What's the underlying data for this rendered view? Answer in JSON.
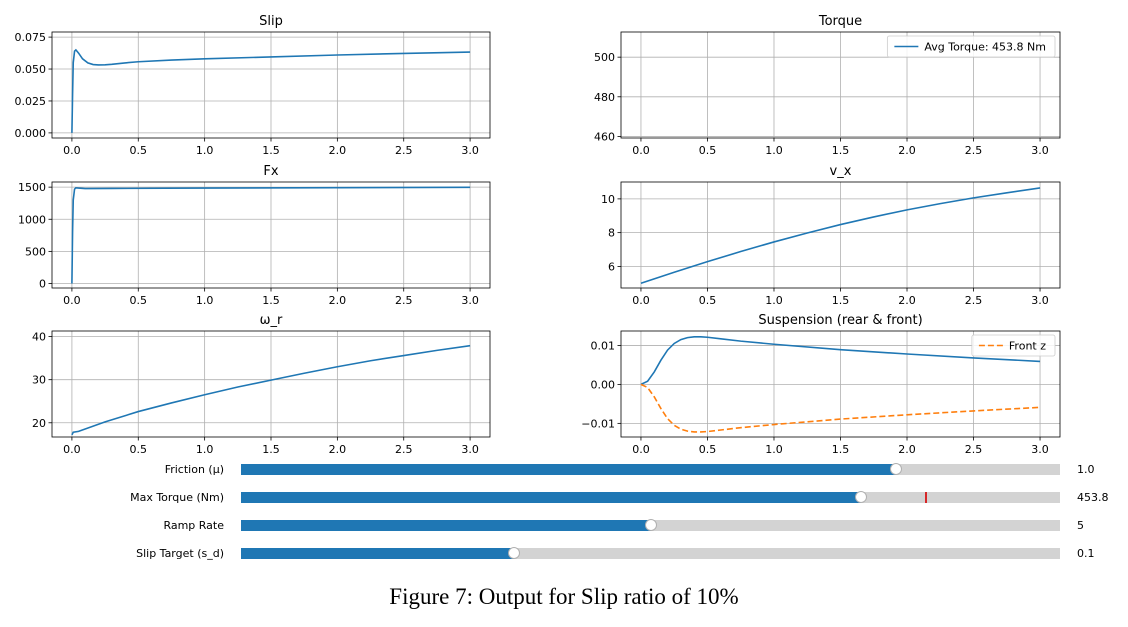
{
  "chart_data": [
    {
      "type": "line",
      "title": "Slip",
      "xlim": [
        -0.15,
        3.15
      ],
      "ylim": [
        -0.004,
        0.079
      ],
      "xticks": [
        0.0,
        0.5,
        1.0,
        1.5,
        2.0,
        2.5,
        3.0
      ],
      "xtick_labels": [
        "0.0",
        "0.5",
        "1.0",
        "1.5",
        "2.0",
        "2.5",
        "3.0"
      ],
      "yticks": [
        0.0,
        0.025,
        0.05,
        0.075
      ],
      "ytick_labels": [
        "0.000",
        "0.025",
        "0.050",
        "0.075"
      ],
      "grid": true,
      "series": [
        {
          "color": "#1f77b4",
          "x": [
            0.0,
            0.005,
            0.01,
            0.02,
            0.03,
            0.05,
            0.08,
            0.12,
            0.16,
            0.2,
            0.25,
            0.3,
            0.4,
            0.5,
            0.75,
            1.0,
            1.5,
            2.0,
            2.5,
            3.0
          ],
          "y": [
            0.0,
            0.03,
            0.055,
            0.064,
            0.065,
            0.0625,
            0.058,
            0.0548,
            0.0535,
            0.0532,
            0.0533,
            0.0537,
            0.0548,
            0.0557,
            0.057,
            0.058,
            0.0595,
            0.061,
            0.0622,
            0.0633
          ]
        }
      ]
    },
    {
      "type": "line",
      "title": "Torque",
      "xlim": [
        -0.15,
        3.15
      ],
      "ylim": [
        459.2,
        512.7
      ],
      "xticks": [
        0.0,
        0.5,
        1.0,
        1.5,
        2.0,
        2.5,
        3.0
      ],
      "xtick_labels": [
        "0.0",
        "0.5",
        "1.0",
        "1.5",
        "2.0",
        "2.5",
        "3.0"
      ],
      "yticks": [
        460,
        480,
        500
      ],
      "ytick_labels": [
        "460",
        "480",
        "500"
      ],
      "grid": true,
      "legend": "top-right",
      "series": [
        {
          "name": "Avg Torque: 453.8 Nm",
          "color": "#1f77b4",
          "x": [
            0.0,
            3.0
          ],
          "y": [
            453.8,
            453.8
          ]
        }
      ]
    },
    {
      "type": "line",
      "title": "Fx",
      "xlim": [
        -0.15,
        3.15
      ],
      "ylim": [
        -70,
        1580
      ],
      "xticks": [
        0.0,
        0.5,
        1.0,
        1.5,
        2.0,
        2.5,
        3.0
      ],
      "xtick_labels": [
        "0.0",
        "0.5",
        "1.0",
        "1.5",
        "2.0",
        "2.5",
        "3.0"
      ],
      "yticks": [
        0,
        500,
        1000,
        1500
      ],
      "ytick_labels": [
        "0",
        "500",
        "1000",
        "1500"
      ],
      "grid": true,
      "series": [
        {
          "color": "#1f77b4",
          "x": [
            0.0,
            0.005,
            0.01,
            0.02,
            0.03,
            0.05,
            0.1,
            0.3,
            1.0,
            2.0,
            3.0
          ],
          "y": [
            0,
            800,
            1300,
            1470,
            1490,
            1485,
            1478,
            1480,
            1485,
            1492,
            1498
          ]
        }
      ]
    },
    {
      "type": "line",
      "title": "v_x",
      "xlim": [
        -0.15,
        3.15
      ],
      "ylim": [
        4.72,
        11.0
      ],
      "xticks": [
        0.0,
        0.5,
        1.0,
        1.5,
        2.0,
        2.5,
        3.0
      ],
      "xtick_labels": [
        "0.0",
        "0.5",
        "1.0",
        "1.5",
        "2.0",
        "2.5",
        "3.0"
      ],
      "yticks": [
        6,
        8,
        10
      ],
      "ytick_labels": [
        "6",
        "8",
        "10"
      ],
      "grid": true,
      "series": [
        {
          "color": "#1f77b4",
          "x": [
            0.0,
            0.25,
            0.5,
            0.75,
            1.0,
            1.25,
            1.5,
            1.75,
            2.0,
            2.25,
            2.5,
            2.75,
            3.0
          ],
          "y": [
            5.0,
            5.65,
            6.28,
            6.88,
            7.45,
            7.98,
            8.48,
            8.93,
            9.35,
            9.72,
            10.06,
            10.36,
            10.65
          ]
        }
      ]
    },
    {
      "type": "line",
      "title": "ω_r",
      "xlim": [
        -0.15,
        3.15
      ],
      "ylim": [
        16.7,
        41.3
      ],
      "xticks": [
        0.0,
        0.5,
        1.0,
        1.5,
        2.0,
        2.5,
        3.0
      ],
      "xtick_labels": [
        "0.0",
        "0.5",
        "1.0",
        "1.5",
        "2.0",
        "2.5",
        "3.0"
      ],
      "yticks": [
        20,
        30,
        40
      ],
      "ytick_labels": [
        "20",
        "30",
        "40"
      ],
      "grid": true,
      "series": [
        {
          "color": "#1f77b4",
          "x": [
            0.0,
            0.01,
            0.05,
            0.25,
            0.5,
            0.75,
            1.0,
            1.25,
            1.5,
            1.75,
            2.0,
            2.25,
            2.5,
            2.75,
            3.0
          ],
          "y": [
            17.2,
            17.8,
            18.0,
            20.2,
            22.6,
            24.6,
            26.5,
            28.3,
            29.9,
            31.5,
            33.0,
            34.4,
            35.6,
            36.8,
            37.9
          ]
        }
      ]
    },
    {
      "type": "line",
      "title": "Suspension (rear & front)",
      "xlim": [
        -0.15,
        3.15
      ],
      "ylim": [
        -0.0135,
        0.0137
      ],
      "xticks": [
        0.0,
        0.5,
        1.0,
        1.5,
        2.0,
        2.5,
        3.0
      ],
      "xtick_labels": [
        "0.0",
        "0.5",
        "1.0",
        "1.5",
        "2.0",
        "2.5",
        "3.0"
      ],
      "yticks": [
        -0.01,
        0.0,
        0.01
      ],
      "ytick_labels": [
        "−0.01",
        "0.00",
        "0.01"
      ],
      "grid": true,
      "legend": "top-right",
      "series": [
        {
          "color": "#1f77b4",
          "dash": "solid",
          "x": [
            0.0,
            0.05,
            0.1,
            0.15,
            0.2,
            0.25,
            0.3,
            0.35,
            0.4,
            0.45,
            0.5,
            0.6,
            0.75,
            1.0,
            1.5,
            2.0,
            2.5,
            3.0
          ],
          "y": [
            0.0,
            0.0008,
            0.0032,
            0.0062,
            0.0088,
            0.0105,
            0.0115,
            0.012,
            0.0122,
            0.0122,
            0.0121,
            0.0117,
            0.0111,
            0.0103,
            0.0089,
            0.0078,
            0.0068,
            0.0059
          ]
        },
        {
          "name": "Front z",
          "color": "#ff7f0e",
          "dash": "dashed",
          "x": [
            0.0,
            0.05,
            0.1,
            0.15,
            0.2,
            0.25,
            0.3,
            0.35,
            0.4,
            0.45,
            0.5,
            0.6,
            0.75,
            1.0,
            1.5,
            2.0,
            2.5,
            3.0
          ],
          "y": [
            0.0,
            -0.0008,
            -0.0032,
            -0.0062,
            -0.0088,
            -0.0105,
            -0.0115,
            -0.012,
            -0.0122,
            -0.0122,
            -0.0121,
            -0.0117,
            -0.0111,
            -0.0103,
            -0.0089,
            -0.0078,
            -0.0068,
            -0.0059
          ]
        }
      ]
    }
  ],
  "sliders": [
    {
      "label": "Friction (μ)",
      "fraction": 0.8,
      "value": "1.0",
      "marker": null
    },
    {
      "label": "Max Torque (Nm)",
      "fraction": 0.757,
      "value": "453.8",
      "marker": 0.836
    },
    {
      "label": "Ramp Rate",
      "fraction": 0.5,
      "value": "5",
      "marker": null
    },
    {
      "label": "Slip Target (s_d)",
      "fraction": 0.333,
      "value": "0.1",
      "marker": null
    }
  ],
  "colors": {
    "line_blue": "#1f77b4",
    "line_orange": "#ff7f0e",
    "slider_track": "#d3d3d3",
    "marker_red": "#d62728",
    "grid": "#b0b0b0"
  },
  "caption": "Figure 7: Output for Slip ratio of 10%"
}
